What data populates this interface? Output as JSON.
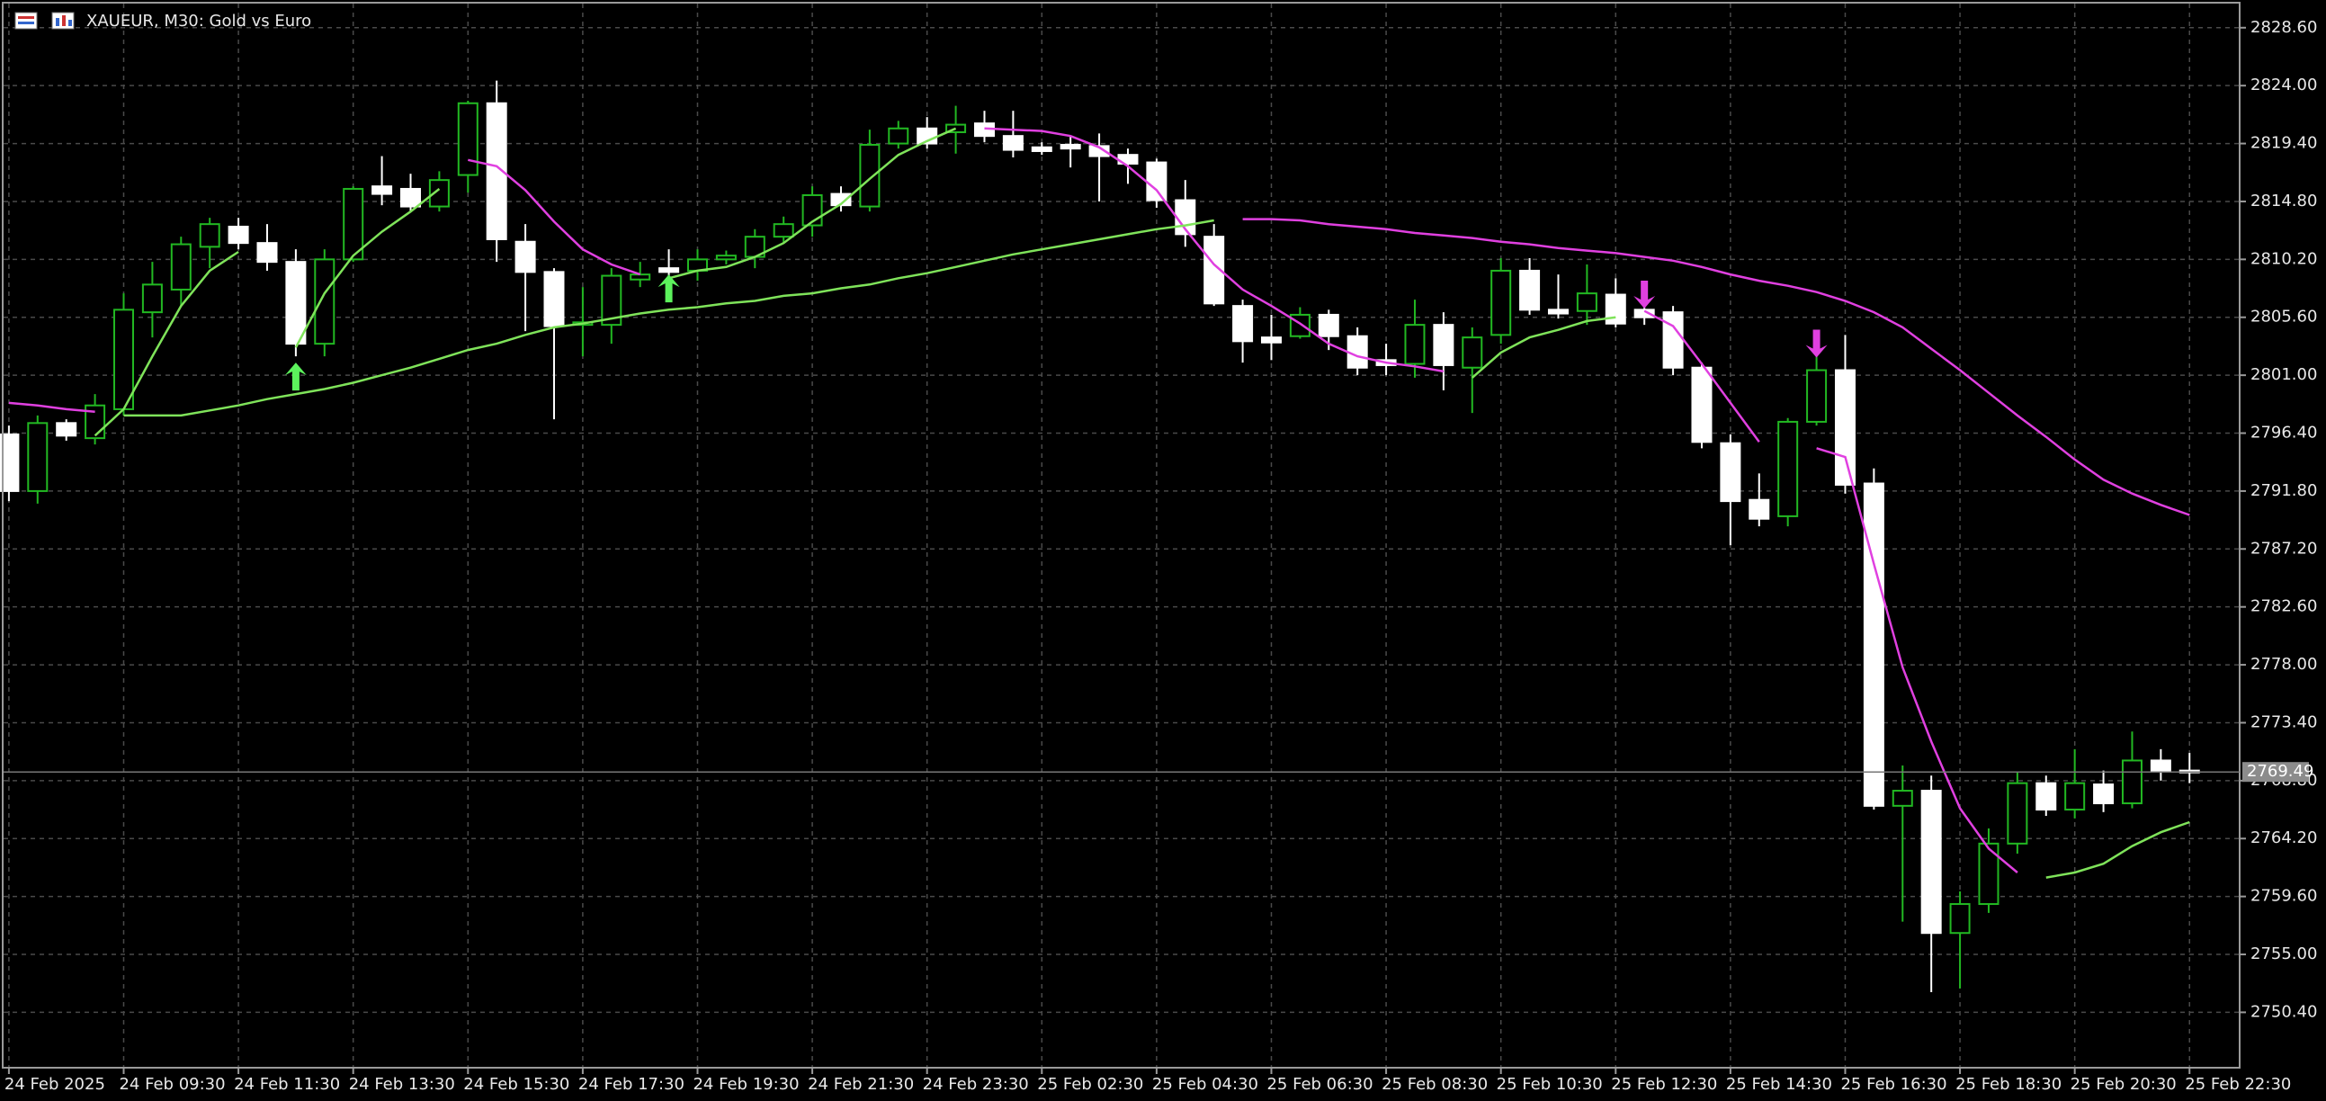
{
  "chart_data": {
    "type": "candlestick",
    "title": "XAUEUR, M30:  Gold vs Euro",
    "categories": [
      "24 Feb 2025",
      null,
      null,
      null,
      "24 Feb 09:30",
      null,
      null,
      null,
      "24 Feb 11:30",
      null,
      null,
      null,
      "24 Feb 13:30",
      null,
      null,
      null,
      "24 Feb 15:30",
      null,
      null,
      null,
      "24 Feb 17:30",
      null,
      null,
      null,
      "24 Feb 19:30",
      null,
      null,
      null,
      "24 Feb 21:30",
      null,
      null,
      null,
      "24 Feb 23:30",
      null,
      null,
      null,
      "25 Feb 02:30",
      null,
      null,
      null,
      "25 Feb 04:30",
      null,
      null,
      null,
      "25 Feb 06:30",
      null,
      null,
      null,
      "25 Feb 08:30",
      null,
      null,
      null,
      "25 Feb 10:30",
      null,
      null,
      null,
      "25 Feb 12:30",
      null,
      null,
      null,
      "25 Feb 14:30",
      null,
      null,
      null,
      "25 Feb 16:30",
      null,
      null,
      null,
      "25 Feb 18:30",
      null,
      null,
      null,
      "25 Feb 20:30",
      null,
      null,
      null,
      "25 Feb 22:30"
    ],
    "open": [
      2796.3,
      2791.8,
      2797.2,
      2796,
      2798.3,
      2806,
      2807.8,
      2811.2,
      2812.8,
      2811.5,
      2810,
      2803.5,
      2810.2,
      2816,
      2815.8,
      2814.4,
      2816.9,
      2822.6,
      2811.6,
      2809.2,
      2805,
      2805,
      2808.6,
      2809.5,
      2809.3,
      2810.2,
      2810.4,
      2812,
      2812.9,
      2815.4,
      2814.4,
      2819.4,
      2820.6,
      2820.3,
      2821,
      2820,
      2819.1,
      2819.3,
      2819.2,
      2818.5,
      2817.9,
      2814.9,
      2812,
      2806.5,
      2804,
      2804.1,
      2805.8,
      2804.1,
      2802.2,
      2801.9,
      2805,
      2801.6,
      2804.2,
      2809.3,
      2806.2,
      2806.1,
      2807.4,
      2806.2,
      2806,
      2801.6,
      2795.6,
      2791.1,
      2789.8,
      2797.3,
      2801.4,
      2792.4,
      2766.8,
      2768,
      2756.7,
      2759,
      2763.8,
      2768.6,
      2766.5,
      2768.5,
      2767,
      2770.4,
      2769.6
    ],
    "high": [
      2797,
      2797.8,
      2797.5,
      2799.5,
      2807.5,
      2810,
      2812,
      2813.5,
      2813.5,
      2813,
      2811,
      2811,
      2816,
      2818.4,
      2817,
      2817.2,
      2822.8,
      2824.4,
      2813,
      2809.5,
      2808,
      2809.5,
      2810,
      2811,
      2811,
      2810.9,
      2812.6,
      2813.6,
      2816,
      2816,
      2820.5,
      2821.2,
      2821.5,
      2822.4,
      2822,
      2822,
      2819.5,
      2820,
      2820.2,
      2819,
      2818.2,
      2816.5,
      2813,
      2807,
      2805.8,
      2806.4,
      2806.2,
      2804.8,
      2803.5,
      2807,
      2806,
      2804.8,
      2810.3,
      2810.3,
      2809,
      2809.8,
      2808.7,
      2808,
      2806.5,
      2802,
      2796.3,
      2793.2,
      2797.6,
      2802.5,
      2804.2,
      2793.6,
      2770,
      2769.2,
      2760,
      2765,
      2769.5,
      2769.2,
      2771.3,
      2769.6,
      2772.7,
      2771.3,
      2771
    ],
    "low": [
      2791,
      2790.8,
      2795.8,
      2795.5,
      2797.8,
      2804,
      2806.5,
      2809.5,
      2811,
      2809.3,
      2802.5,
      2802.5,
      2810,
      2814.5,
      2814,
      2814,
      2815.5,
      2810,
      2804.5,
      2797.5,
      2802.5,
      2803.5,
      2808,
      2808.6,
      2808.5,
      2809.8,
      2809.5,
      2811.5,
      2812,
      2814,
      2814,
      2819,
      2819,
      2818.6,
      2819.5,
      2818.3,
      2818.5,
      2817.5,
      2814.8,
      2816.2,
      2814.3,
      2811.2,
      2806.5,
      2802,
      2802.2,
      2803.9,
      2803,
      2801,
      2801,
      2800.8,
      2799.8,
      2798,
      2803.5,
      2805.8,
      2805.5,
      2805,
      2804.8,
      2805,
      2801,
      2795.2,
      2787.5,
      2789,
      2789,
      2797,
      2791.6,
      2766.5,
      2757.6,
      2752,
      2752.3,
      2758.3,
      2763,
      2766,
      2765.8,
      2766.3,
      2766.6,
      2768.8,
      2768.6
    ],
    "close": [
      2791.8,
      2797.2,
      2796.2,
      2798.6,
      2806.2,
      2808.2,
      2811.4,
      2813,
      2811.5,
      2810,
      2803.5,
      2810.2,
      2815.8,
      2815.4,
      2814.4,
      2816.5,
      2822.6,
      2811.8,
      2809.2,
      2804.9,
      2805.2,
      2808.9,
      2809,
      2809.2,
      2810.2,
      2810.5,
      2812,
      2813,
      2815.3,
      2814.5,
      2819.3,
      2820.6,
      2819.4,
      2820.9,
      2820,
      2818.9,
      2818.8,
      2819,
      2818.4,
      2817.8,
      2814.9,
      2812.2,
      2806.7,
      2803.7,
      2803.6,
      2805.8,
      2804.1,
      2801.6,
      2801.8,
      2805,
      2801.8,
      2804,
      2809.3,
      2806.2,
      2805.9,
      2807.5,
      2805.1,
      2805.6,
      2801.6,
      2795.7,
      2791,
      2789.6,
      2797.3,
      2801.4,
      2792.3,
      2766.8,
      2768,
      2756.7,
      2759,
      2763.8,
      2768.6,
      2766.5,
      2768.6,
      2767,
      2770.4,
      2769.6,
      2769.5
    ],
    "bull_color": "#22b822",
    "bear_color": "#ffffff",
    "series": [
      {
        "color": "#7fe35a",
        "values": [
          null,
          null,
          null,
          2796.2,
          2798.3,
          2802.5,
          2806.5,
          2809.3,
          2810.8,
          null,
          2803.2,
          2807.5,
          2810.5,
          2812.4,
          2814,
          2815.8,
          null,
          null,
          null,
          null,
          null,
          null,
          null,
          2808.7,
          2809.3,
          2809.6,
          2810.4,
          2811.5,
          2813.2,
          2814.6,
          2816.6,
          2818.5,
          2819.6,
          2820.6,
          null,
          null,
          null,
          null,
          null,
          null,
          null,
          null,
          null,
          null,
          null,
          null,
          null,
          null,
          null,
          null,
          null,
          2800.8,
          2802.8,
          2804,
          2804.6,
          2805.3,
          2805.6,
          null,
          null,
          null,
          null,
          null,
          null,
          null,
          null,
          null,
          null,
          null,
          null,
          null,
          null,
          2761.1,
          2761.5,
          2762.2,
          2763.6,
          2764.7,
          2765.5
        ]
      },
      {
        "color": "#e040e0",
        "values": [
          null,
          null,
          null,
          null,
          null,
          null,
          null,
          null,
          null,
          null,
          null,
          null,
          null,
          null,
          null,
          null,
          2818.1,
          2817.6,
          2815.7,
          2813.2,
          2811,
          2809.8,
          2809,
          null,
          null,
          null,
          null,
          null,
          null,
          null,
          null,
          null,
          null,
          null,
          2820.6,
          2820.5,
          2820.4,
          2820,
          2819.1,
          2817.6,
          2815.7,
          2812.6,
          2809.8,
          2807.8,
          2806.5,
          2805.1,
          2803.5,
          2802.5,
          2802,
          2801.7,
          2801.3,
          null,
          null,
          null,
          null,
          null,
          null,
          2806.1,
          2804.9,
          2801.9,
          2798.8,
          2795.7,
          null,
          2795.2,
          2794.5,
          2786,
          2777.8,
          2771.9,
          2766.6,
          2763.4,
          2761.5,
          null,
          null,
          null,
          null,
          null,
          null
        ]
      },
      {
        "color": "#7fe35a",
        "values": [
          null,
          null,
          null,
          null,
          2797.8,
          2797.8,
          2797.8,
          2798.2,
          2798.6,
          2799.1,
          2799.5,
          2799.9,
          2800.4,
          2801,
          2801.6,
          2802.3,
          2803,
          2803.5,
          2804.2,
          2804.8,
          2805.1,
          2805.5,
          2805.9,
          2806.2,
          2806.4,
          2806.7,
          2806.9,
          2807.3,
          2807.5,
          2807.9,
          2808.2,
          2808.7,
          2809.1,
          2809.6,
          2810.1,
          2810.6,
          2811,
          2811.4,
          2811.8,
          2812.2,
          2812.6,
          2812.9,
          2813.3,
          null,
          null,
          null,
          null,
          null,
          null,
          null,
          null,
          null,
          null,
          null,
          null,
          null,
          null,
          null,
          null,
          null,
          null,
          null,
          null,
          null,
          null,
          null,
          null,
          null,
          null,
          null,
          null,
          null,
          null,
          null,
          null,
          null,
          null
        ]
      },
      {
        "color": "#e040e0",
        "values": [
          2798.8,
          2798.6,
          2798.3,
          2798.1,
          null,
          null,
          null,
          null,
          null,
          null,
          null,
          null,
          null,
          null,
          null,
          null,
          null,
          null,
          null,
          null,
          null,
          null,
          null,
          null,
          null,
          null,
          null,
          null,
          null,
          null,
          null,
          null,
          null,
          null,
          null,
          null,
          null,
          null,
          null,
          null,
          null,
          null,
          null,
          2813.4,
          2813.4,
          2813.3,
          2813,
          2812.8,
          2812.6,
          2812.3,
          2812.1,
          2811.9,
          2811.6,
          2811.4,
          2811.1,
          2810.9,
          2810.7,
          2810.4,
          2810.1,
          2809.6,
          2809,
          2808.5,
          2808.1,
          2807.6,
          2806.9,
          2806,
          2804.8,
          2803.1,
          2801.4,
          2799.6,
          2797.8,
          2796.1,
          2794.3,
          2792.7,
          2791.6,
          2790.7,
          2789.9
        ]
      }
    ],
    "signals": [
      {
        "direction": "up",
        "color": "#5cf25c",
        "values": [
          null,
          null,
          null,
          null,
          null,
          null,
          null,
          null,
          null,
          null,
          2802,
          null,
          null,
          null,
          null,
          null,
          null,
          null,
          null,
          null,
          null,
          null,
          null,
          2809,
          null,
          null,
          null,
          null,
          null,
          null,
          null,
          null,
          null,
          null,
          null,
          null,
          null,
          null,
          null,
          null,
          null,
          null,
          null,
          null,
          null,
          null,
          null,
          null,
          null,
          null,
          null,
          null,
          null,
          null,
          null,
          null,
          null,
          null,
          null,
          null,
          null,
          null,
          null,
          null,
          null,
          null,
          null,
          null,
          null,
          null,
          null,
          null,
          null,
          null,
          null,
          null,
          null
        ]
      },
      {
        "direction": "down",
        "color": "#e040e0",
        "values": [
          null,
          null,
          null,
          null,
          null,
          null,
          null,
          null,
          null,
          null,
          null,
          null,
          null,
          null,
          null,
          null,
          null,
          null,
          null,
          null,
          null,
          null,
          null,
          null,
          null,
          null,
          null,
          null,
          null,
          null,
          null,
          null,
          null,
          null,
          null,
          null,
          null,
          null,
          null,
          null,
          null,
          null,
          null,
          null,
          null,
          null,
          null,
          null,
          null,
          null,
          null,
          null,
          null,
          null,
          null,
          null,
          null,
          2806.3,
          null,
          null,
          null,
          null,
          null,
          2802.4,
          null,
          null,
          null,
          null,
          null,
          null,
          null,
          null,
          null,
          null,
          null,
          null,
          null
        ]
      }
    ],
    "last_price": 2769.49,
    "ylim": [
      2746,
      2830.8
    ],
    "yticks": [
      {
        "value": 2828.6,
        "label": "2828.60"
      },
      {
        "value": 2824,
        "label": "2824.00"
      },
      {
        "value": 2819.4,
        "label": "2819.40"
      },
      {
        "value": 2814.8,
        "label": "2814.80"
      },
      {
        "value": 2810.2,
        "label": "2810.20"
      },
      {
        "value": 2805.6,
        "label": "2805.60"
      },
      {
        "value": 2801,
        "label": "2801.00"
      },
      {
        "value": 2796.4,
        "label": "2796.40"
      },
      {
        "value": 2791.8,
        "label": "2791.80"
      },
      {
        "value": 2787.2,
        "label": "2787.20"
      },
      {
        "value": 2782.6,
        "label": "2782.60"
      },
      {
        "value": 2778,
        "label": "2778.00"
      },
      {
        "value": 2773.4,
        "label": "2773.40"
      },
      {
        "value": 2768.8,
        "label": "2768.80"
      },
      {
        "value": 2764.2,
        "label": "2764.20"
      },
      {
        "value": 2759.6,
        "label": "2759.60"
      },
      {
        "value": 2755,
        "label": "2755.00"
      },
      {
        "value": 2750.4,
        "label": "2750.40"
      }
    ],
    "grid": true
  }
}
